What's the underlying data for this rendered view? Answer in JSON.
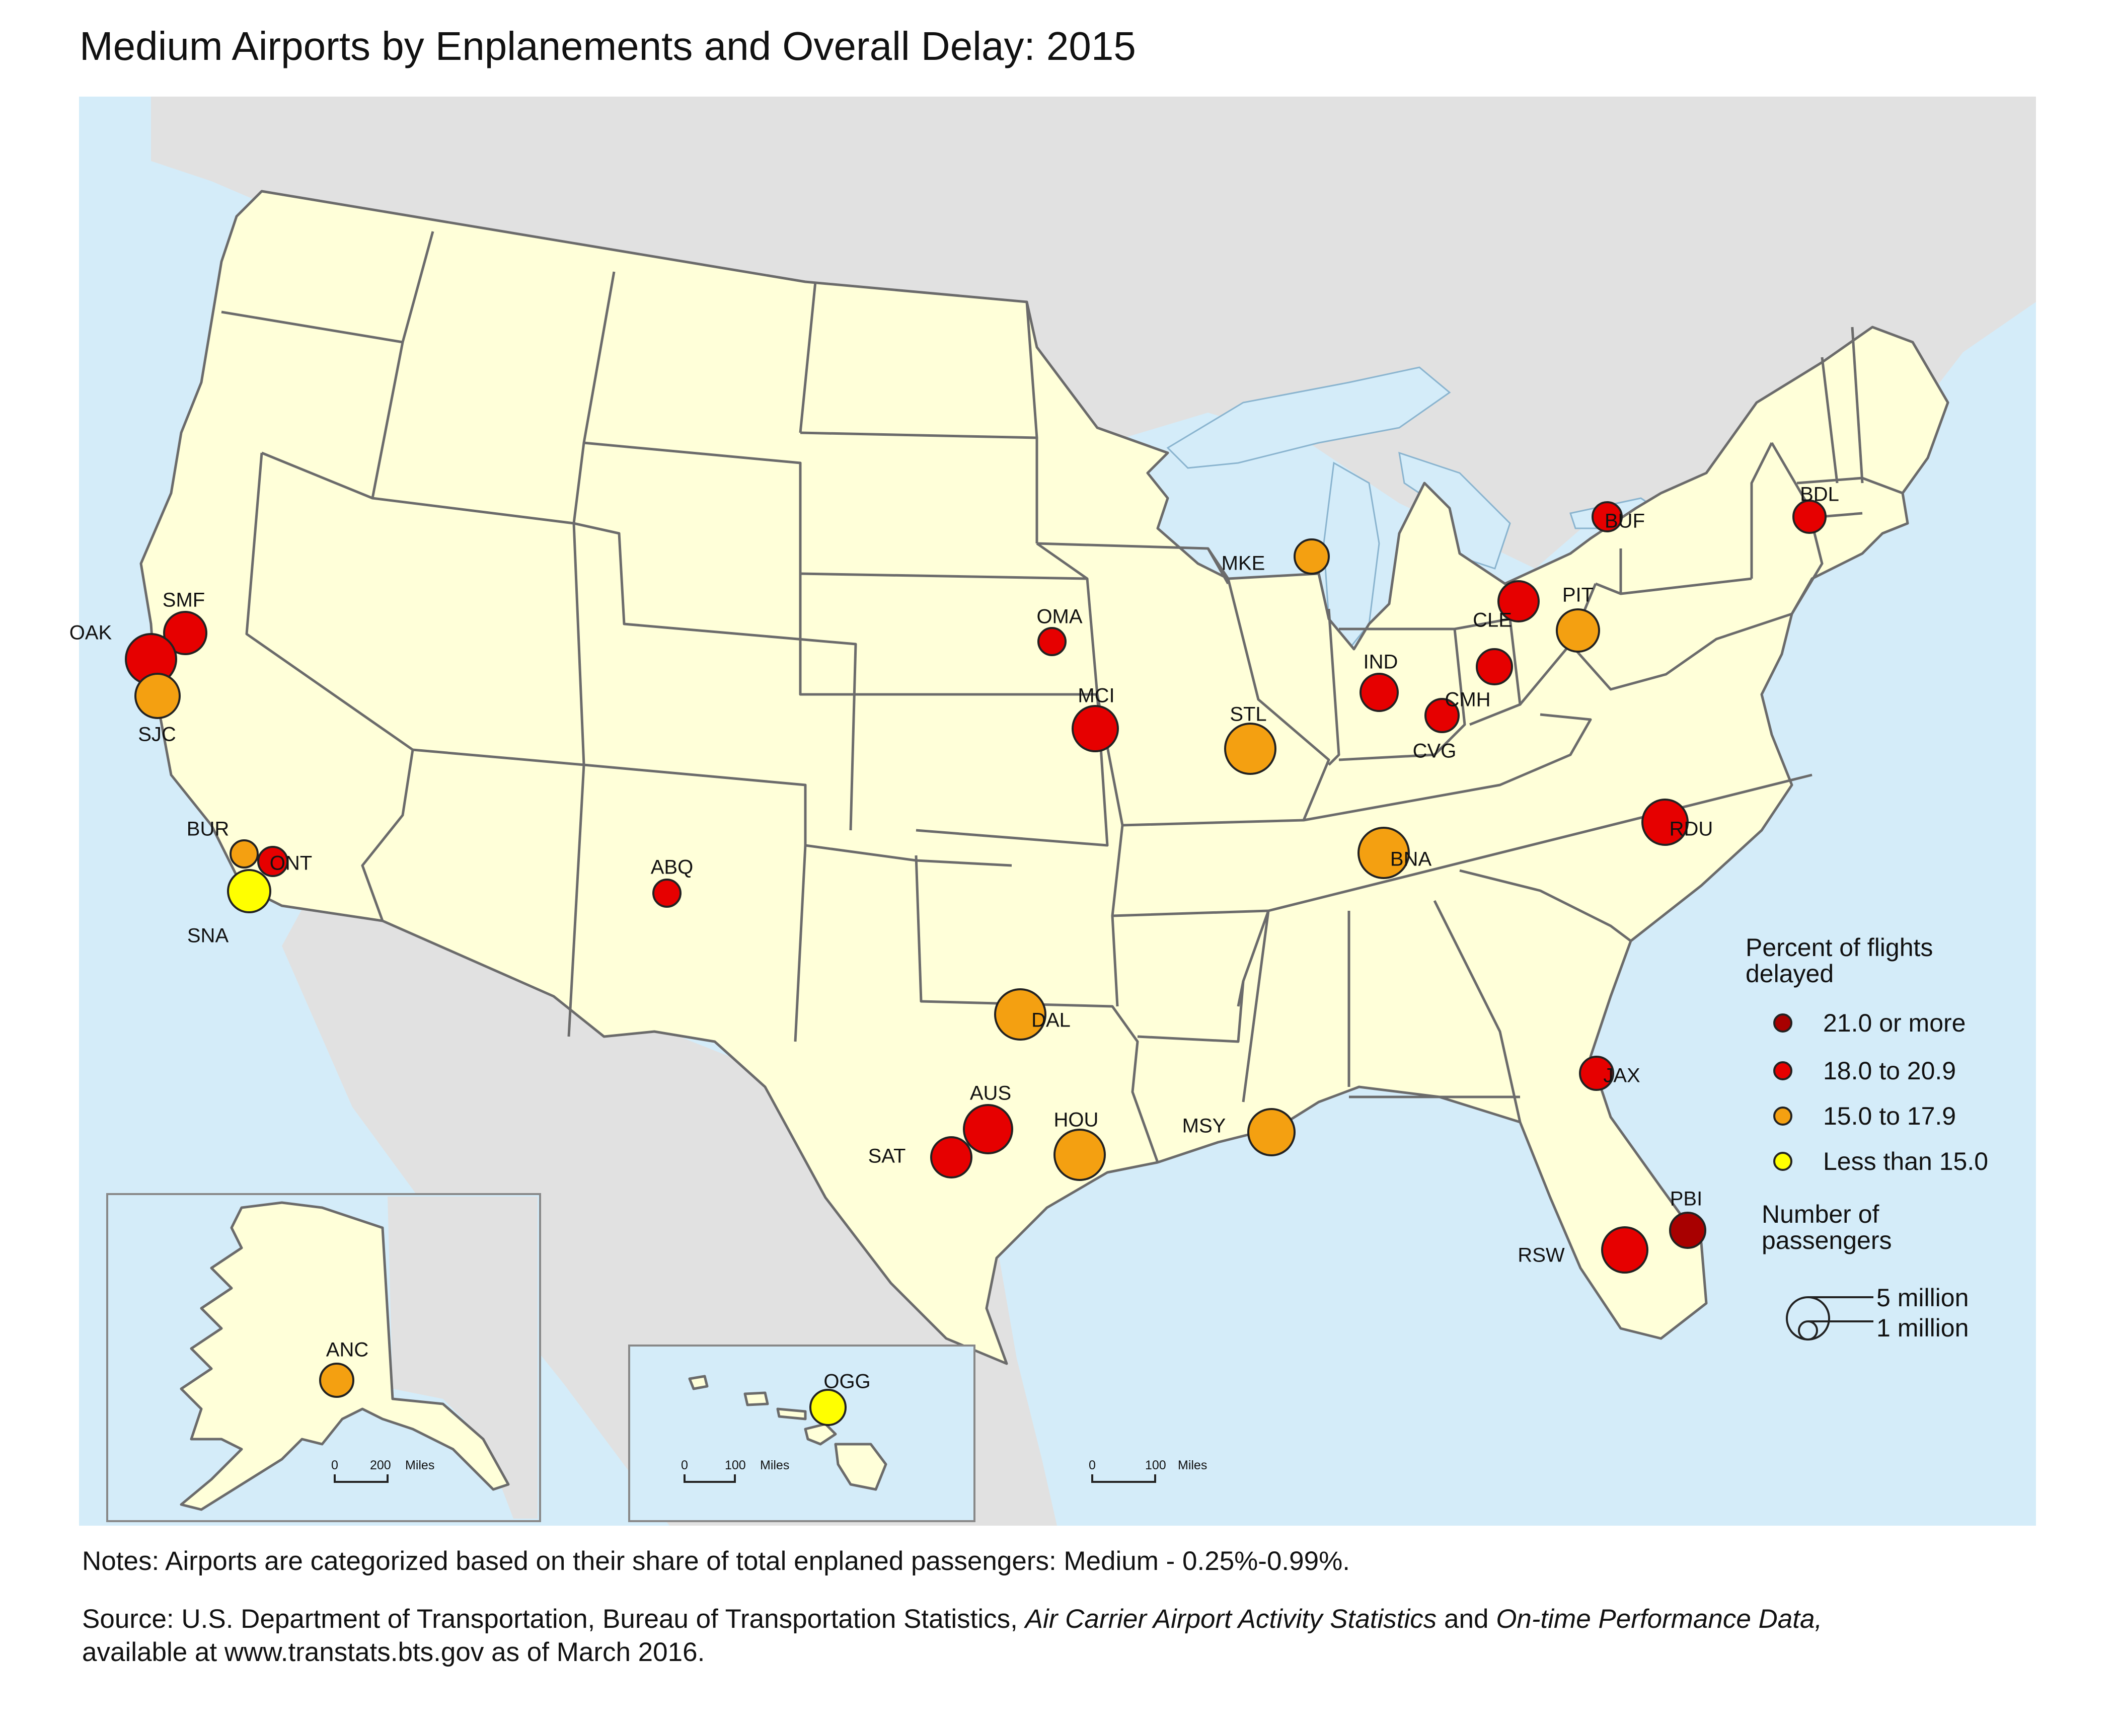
{
  "title": "Medium Airports by Enplanements and Overall Delay: 2015",
  "colors": {
    "water": "#d4ecf9",
    "land_us": "#ffffd9",
    "land_other": "#e1e1e1",
    "state_border": "#6b6b6b",
    "delay_21_plus": "#a80000",
    "delay_18_20_9": "#e60000",
    "delay_15_17_9": "#f4a011",
    "delay_under_15": "#ffff00"
  },
  "legend": {
    "delay_title_line1": "Percent of flights",
    "delay_title_line2": "delayed",
    "classes": [
      {
        "label": "21.0 or more",
        "color": "#a80000"
      },
      {
        "label": "18.0 to 20.9",
        "color": "#e60000"
      },
      {
        "label": "15.0 to 17.9",
        "color": "#f4a011"
      },
      {
        "label": "Less than 15.0",
        "color": "#ffff00"
      }
    ],
    "size_title_line1": "Number of",
    "size_title_line2": "passengers",
    "size_large_label": "5 million",
    "size_small_label": "1 million"
  },
  "airports": [
    {
      "code": "SMF",
      "delay_class": 1
    },
    {
      "code": "OAK",
      "delay_class": 1
    },
    {
      "code": "SJC",
      "delay_class": 2
    },
    {
      "code": "BUR",
      "delay_class": 2
    },
    {
      "code": "ONT",
      "delay_class": 1
    },
    {
      "code": "SNA",
      "delay_class": 3
    },
    {
      "code": "ABQ",
      "delay_class": 1
    },
    {
      "code": "OMA",
      "delay_class": 1
    },
    {
      "code": "MCI",
      "delay_class": 1
    },
    {
      "code": "MKE",
      "delay_class": 2
    },
    {
      "code": "STL",
      "delay_class": 2
    },
    {
      "code": "IND",
      "delay_class": 1
    },
    {
      "code": "CVG",
      "delay_class": 1
    },
    {
      "code": "CMH",
      "delay_class": 1
    },
    {
      "code": "CLE",
      "delay_class": 1
    },
    {
      "code": "PIT",
      "delay_class": 2
    },
    {
      "code": "BUF",
      "delay_class": 1
    },
    {
      "code": "BDL",
      "delay_class": 1
    },
    {
      "code": "BNA",
      "delay_class": 2
    },
    {
      "code": "RDU",
      "delay_class": 1
    },
    {
      "code": "DAL",
      "delay_class": 2
    },
    {
      "code": "AUS",
      "delay_class": 1
    },
    {
      "code": "SAT",
      "delay_class": 1
    },
    {
      "code": "HOU",
      "delay_class": 2
    },
    {
      "code": "MSY",
      "delay_class": 2
    },
    {
      "code": "JAX",
      "delay_class": 1
    },
    {
      "code": "PBI",
      "delay_class": 0
    },
    {
      "code": "RSW",
      "delay_class": 1
    },
    {
      "code": "ANC",
      "delay_class": 2
    },
    {
      "code": "OGG",
      "delay_class": 3
    }
  ],
  "scalebars": {
    "alaska": {
      "zero": "0",
      "distance": "200",
      "unit": "Miles"
    },
    "hawaii": {
      "zero": "0",
      "distance": "100",
      "unit": "Miles"
    },
    "mainland": {
      "zero": "0",
      "distance": "100",
      "unit": "Miles"
    }
  },
  "notes": "Notes: Airports are categorized based on their share of total enplaned passengers: Medium - 0.25%-0.99%.",
  "source_line1_a": "Source: U.S. Department of Transportation, Bureau of Transportation Statistics, ",
  "source_line1_italic1": "Air Carrier Airport Activity Statistics",
  "source_line1_b": " and ",
  "source_line1_italic2": "On-time Performance Data,",
  "source_line2": "available at www.transtats.bts.gov as of March 2016."
}
